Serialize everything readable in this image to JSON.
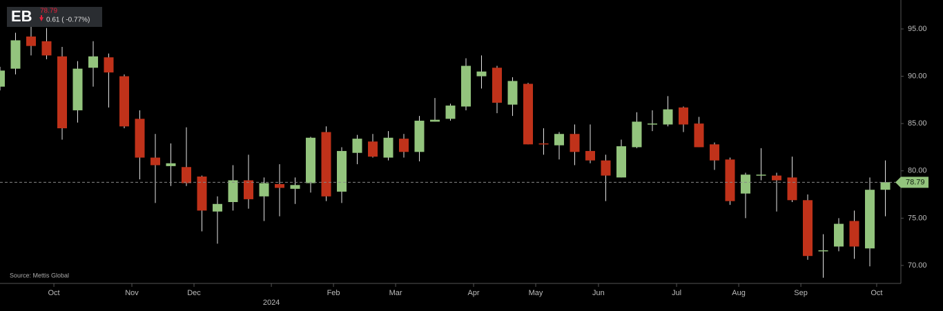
{
  "chart_data": {
    "type": "candlestick",
    "ticker": "EB",
    "last_price": 78.79,
    "change": "0.61 ( -0.77%)",
    "source": "Source: Mettis Global",
    "up_color": "#93c47d",
    "down_color": "#c0321a",
    "x": [
      0,
      1,
      2,
      3,
      4,
      5,
      6,
      7,
      8,
      9,
      10,
      11,
      12,
      13,
      14,
      15,
      16,
      17,
      18,
      19,
      20,
      21,
      22,
      23,
      24,
      25,
      26,
      27,
      28,
      29,
      30,
      31,
      32,
      33,
      34,
      35,
      36,
      37,
      38,
      39,
      40,
      41,
      42,
      43,
      44,
      45,
      46,
      47,
      48,
      49,
      50,
      51,
      52,
      53,
      54,
      55,
      56,
      57
    ],
    "open": [
      88.9,
      90.8,
      94.2,
      93.7,
      92.1,
      86.4,
      90.9,
      92.0,
      90.0,
      85.5,
      81.4,
      80.5,
      80.4,
      79.4,
      75.7,
      76.7,
      79.0,
      77.3,
      78.6,
      78.1,
      78.7,
      84.1,
      77.8,
      81.9,
      83.1,
      81.4,
      83.4,
      82.0,
      85.2,
      85.5,
      86.8,
      90.0,
      90.9,
      87.0,
      89.2,
      82.9,
      82.7,
      83.9,
      82.1,
      81.1,
      79.3,
      82.5,
      84.9,
      84.9,
      86.7,
      85.0,
      82.8,
      81.2,
      77.6,
      79.5,
      79.5,
      79.3,
      76.9,
      71.5,
      72.0,
      74.7,
      71.8,
      78.0
    ],
    "high": [
      91.0,
      94.6,
      95.3,
      95.1,
      93.1,
      91.6,
      93.7,
      92.4,
      90.2,
      86.4,
      83.9,
      82.9,
      84.6,
      79.5,
      77.3,
      80.6,
      81.7,
      79.3,
      80.7,
      79.3,
      83.6,
      84.7,
      82.5,
      83.8,
      83.9,
      84.2,
      83.9,
      85.8,
      87.7,
      87.1,
      91.9,
      92.2,
      91.1,
      89.9,
      89.3,
      84.5,
      84.1,
      84.9,
      84.9,
      81.7,
      83.3,
      86.2,
      86.4,
      87.9,
      86.8,
      85.7,
      83.0,
      81.4,
      79.8,
      82.4,
      79.8,
      81.5,
      77.5,
      73.3,
      75.0,
      75.8,
      79.3,
      81.1
    ],
    "low": [
      88.5,
      90.2,
      92.2,
      91.8,
      83.3,
      85.1,
      88.9,
      86.7,
      84.5,
      79.1,
      76.6,
      78.4,
      78.4,
      73.6,
      72.3,
      75.8,
      76.0,
      74.7,
      75.2,
      76.5,
      77.7,
      76.8,
      76.6,
      80.7,
      81.4,
      81.1,
      81.4,
      81.0,
      85.2,
      85.3,
      86.4,
      88.7,
      86.1,
      85.8,
      82.8,
      81.7,
      81.2,
      80.6,
      80.8,
      76.8,
      79.3,
      82.4,
      84.2,
      84.7,
      84.1,
      82.5,
      80.1,
      76.4,
      75.0,
      79.0,
      75.7,
      76.7,
      70.6,
      68.7,
      71.5,
      70.7,
      69.9,
      75.2
    ],
    "close": [
      90.6,
      93.8,
      93.2,
      92.2,
      84.5,
      90.8,
      92.1,
      90.4,
      84.7,
      81.4,
      80.6,
      80.8,
      78.7,
      75.8,
      76.5,
      79.0,
      77.0,
      78.7,
      78.2,
      78.5,
      83.5,
      77.3,
      82.1,
      83.4,
      81.5,
      83.5,
      82.0,
      85.3,
      85.4,
      86.9,
      91.1,
      90.5,
      87.2,
      89.5,
      82.8,
      82.8,
      83.9,
      82.0,
      81.1,
      79.5,
      82.6,
      85.2,
      85.0,
      86.5,
      84.9,
      82.5,
      81.1,
      76.8,
      79.6,
      79.6,
      79.0,
      76.9,
      71.0,
      71.6,
      74.4,
      72.0,
      78.0,
      78.8
    ],
    "xlim": [
      0,
      58
    ],
    "xticks": [
      {
        "value": 3.47,
        "label": "Oct"
      },
      {
        "value": 8.49,
        "label": "Nov"
      },
      {
        "value": 12.49,
        "label": "Dec"
      },
      {
        "value": 17.47,
        "label": "2024"
      },
      {
        "value": 21.47,
        "label": "Feb"
      },
      {
        "value": 25.47,
        "label": "Mar"
      },
      {
        "value": 30.49,
        "label": "Apr"
      },
      {
        "value": 34.49,
        "label": "May"
      },
      {
        "value": 38.53,
        "label": "Jun"
      },
      {
        "value": 43.56,
        "label": "Jul"
      },
      {
        "value": 47.56,
        "label": "Aug"
      },
      {
        "value": 51.56,
        "label": "Sep"
      },
      {
        "value": 56.44,
        "label": "Oct"
      }
    ],
    "ylim": [
      68.1,
      98.06
    ],
    "yticks": [
      {
        "value": 95,
        "label": "95.00"
      },
      {
        "value": 90,
        "label": "90.00"
      },
      {
        "value": 85,
        "label": "85.00"
      },
      {
        "value": 80,
        "label": "80.00"
      },
      {
        "value": 75,
        "label": "75.00"
      },
      {
        "value": 70,
        "label": "70.00"
      }
    ]
  }
}
